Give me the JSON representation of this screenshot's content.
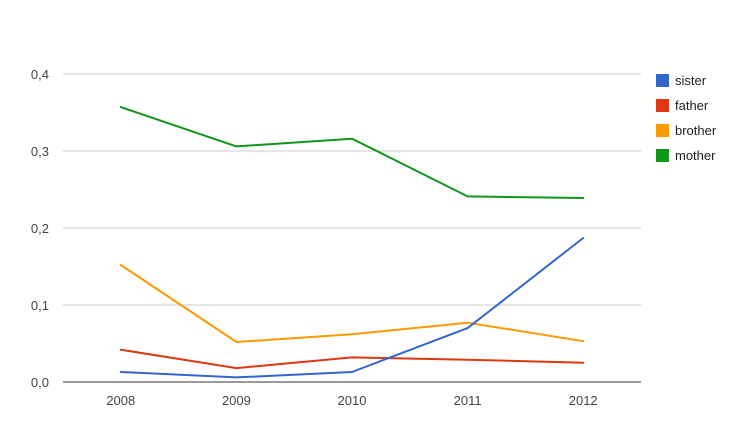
{
  "chart_data": {
    "type": "line",
    "title": "",
    "xlabel": "",
    "ylabel": "",
    "categories": [
      "2008",
      "2009",
      "2010",
      "2011",
      "2012"
    ],
    "ylim": [
      0,
      0.4
    ],
    "y_ticks": [
      {
        "value": 0,
        "label": "0,0"
      },
      {
        "value": 0.1,
        "label": "0,1"
      },
      {
        "value": 0.2,
        "label": "0,2"
      },
      {
        "value": 0.3,
        "label": "0,3"
      },
      {
        "value": 0.4,
        "label": "0,4"
      }
    ],
    "grid": true,
    "legend_position": "right",
    "series": [
      {
        "name": "sister",
        "color": "#3366cc",
        "values": [
          0.013,
          0.006,
          0.013,
          0.07,
          0.187
        ]
      },
      {
        "name": "father",
        "color": "#dc3912",
        "values": [
          0.042,
          0.018,
          0.032,
          0.029,
          0.025
        ]
      },
      {
        "name": "brother",
        "color": "#ff9900",
        "values": [
          0.152,
          0.052,
          0.062,
          0.077,
          0.053
        ]
      },
      {
        "name": "mother",
        "color": "#109618",
        "values": [
          0.357,
          0.306,
          0.316,
          0.241,
          0.239
        ]
      }
    ]
  }
}
